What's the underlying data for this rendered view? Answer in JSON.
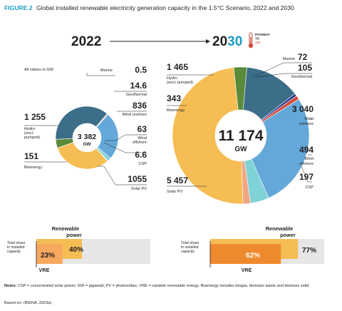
{
  "figure": {
    "number": "FIGURE 2",
    "title": "Global installed renewable electricity generation capacity in the 1.5°C Scenario, 2022 and 2030",
    "notes_label": "Notes:",
    "notes_text": "CSP = concentrated solar power; GW = gigawatt; PV = photovoltaic; VRE = variable renewable energy. Bioenergy includes biogas, biomass waste and biomass solid.",
    "based_on": "Based on: (IRENA, 2023a)."
  },
  "header": {
    "year_left": "2022",
    "year_right_a": "20",
    "year_right_b": "30",
    "pathway_l1": "PATHWAY",
    "pathway_l2": "TO",
    "pathway_l3": "1.5°"
  },
  "colors": {
    "solar_pv": "#f6bd55",
    "hydro": "#3c6e8a",
    "wind_onshore": "#64a8d9",
    "wind_offshore": "#7fd2d5",
    "csp": "#f0a583",
    "bioenergy": "#5a8a3a",
    "geothermal": "#d14b3d",
    "marine": "#2b3a8f",
    "accent": "#1b9cc4",
    "renewable_bar": "#f6bd55",
    "vre_bar_2022": "#f6a85f",
    "vre_bar_2030": "#ee8a2d",
    "bar_track": "#e6e6e6"
  },
  "chart_data": [
    {
      "type": "pie",
      "title": "2022",
      "unit_note": "All values in GW",
      "total": "3 382",
      "total_unit": "GW",
      "slices": [
        {
          "label": "Solar PV",
          "value": 1055,
          "display": "1055",
          "color_key": "solar_pv"
        },
        {
          "label": "Bioenergy",
          "value": 151,
          "display": "151",
          "color_key": "bioenergy"
        },
        {
          "label": "Hydro (excl. pumped)",
          "value": 1255,
          "display": "1 255",
          "color_key": "hydro"
        },
        {
          "label": "Marine",
          "value": 0.5,
          "display": "0.5",
          "color_key": "marine"
        },
        {
          "label": "Geothermal",
          "value": 14.6,
          "display": "14.6",
          "color_key": "geothermal"
        },
        {
          "label": "Wind onshore",
          "value": 836,
          "display": "836",
          "color_key": "wind_onshore"
        },
        {
          "label": "Wind offshore",
          "value": 63,
          "display": "63",
          "color_key": "wind_offshore"
        },
        {
          "label": "CSP",
          "value": 6.6,
          "display": "6.6",
          "color_key": "csp"
        }
      ],
      "labels": {
        "marine": "Marine",
        "geothermal": "Geothermal",
        "wind_onshore": "Wind onshore",
        "wind_offshore_l1": "Wind",
        "wind_offshore_l2": "offshore",
        "csp": "CSP",
        "solar_pv": "Solar PV",
        "hydro_l1": "Hydro",
        "hydro_l2": "(excl.",
        "hydro_l3": "pumped)",
        "bioenergy": "Bioenergy"
      }
    },
    {
      "type": "pie",
      "title": "2030",
      "total": "11 174",
      "total_unit": "GW",
      "slices": [
        {
          "label": "Solar PV",
          "value": 5457,
          "display": "5 457",
          "color_key": "solar_pv"
        },
        {
          "label": "Bioenergy",
          "value": 343,
          "display": "343",
          "color_key": "bioenergy"
        },
        {
          "label": "Hydro (excl. pumped)",
          "value": 1465,
          "display": "1 465",
          "color_key": "hydro"
        },
        {
          "label": "Marine",
          "value": 72,
          "display": "72",
          "color_key": "marine"
        },
        {
          "label": "Geothermal",
          "value": 105,
          "display": "105",
          "color_key": "geothermal"
        },
        {
          "label": "Wind onshore",
          "value": 3040,
          "display": "3 040",
          "color_key": "wind_onshore"
        },
        {
          "label": "Wind offshore",
          "value": 494,
          "display": "494",
          "color_key": "wind_offshore"
        },
        {
          "label": "CSP",
          "value": 197,
          "display": "197",
          "color_key": "csp"
        }
      ],
      "labels": {
        "marine": "Marine",
        "geothermal": "Geothermal",
        "wind_onshore_l1": "Wind",
        "wind_onshore_l2": "onshore",
        "wind_offshore_l1": "Wind",
        "wind_offshore_l2": "offshore",
        "csp": "CSP",
        "solar_pv": "Solar PV",
        "hydro_l1": "Hydro",
        "hydro_l2": "(excl. pumped)",
        "bioenergy": "Bioenergy"
      }
    },
    {
      "type": "bar",
      "title": "2022",
      "row_label_l1": "Total share",
      "row_label_l2": "in installed",
      "row_label_l3": "capacity",
      "renewable_label_l1": "Renewable",
      "renewable_label_l2": "power",
      "vre_label": "VRE",
      "renewable_share": 40,
      "renewable_display": "40%",
      "vre_share": 23,
      "vre_display": "23%"
    },
    {
      "type": "bar",
      "title": "2030",
      "row_label_l1": "Total share",
      "row_label_l2": "in installed",
      "row_label_l3": "capacity",
      "renewable_label_l1": "Renewable",
      "renewable_label_l2": "power",
      "vre_label": "VRE",
      "renewable_share": 77,
      "renewable_display": "77%",
      "vre_share": 62,
      "vre_display": "62%"
    }
  ]
}
